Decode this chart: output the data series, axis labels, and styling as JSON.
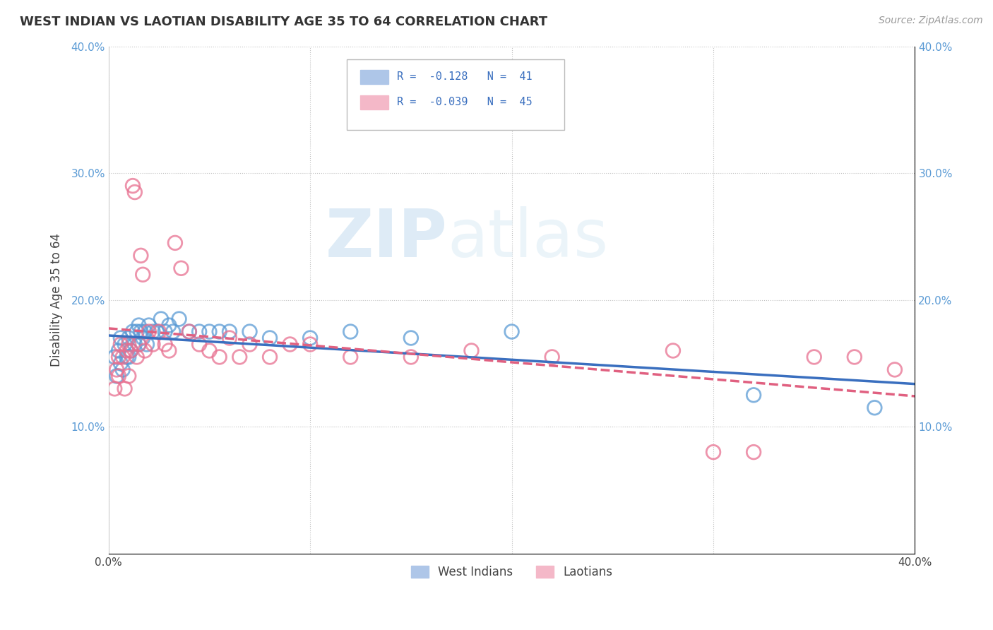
{
  "title": "WEST INDIAN VS LAOTIAN DISABILITY AGE 35 TO 64 CORRELATION CHART",
  "source_text": "Source: ZipAtlas.com",
  "ylabel": "Disability Age 35 to 64",
  "xlim": [
    0.0,
    0.4
  ],
  "ylim": [
    0.0,
    0.4
  ],
  "xtick_vals": [
    0.0,
    0.1,
    0.2,
    0.3,
    0.4
  ],
  "xtick_labels": [
    "0.0%",
    "",
    "",
    "",
    "40.0%"
  ],
  "ytick_vals": [
    0.1,
    0.2,
    0.3,
    0.4
  ],
  "ytick_labels": [
    "10.0%",
    "20.0%",
    "30.0%",
    "40.0%"
  ],
  "right_ytick_vals": [
    0.1,
    0.2,
    0.3,
    0.4
  ],
  "right_ytick_labels": [
    "10.0%",
    "20.0%",
    "30.0%",
    "40.0%"
  ],
  "west_indian_color": "#7bafd4",
  "west_indian_edge": "#5b9bd5",
  "laotian_color": "#f4a0b0",
  "laotian_edge": "#e87090",
  "west_indian_line_color": "#3a6fbf",
  "laotian_line_color": "#e06080",
  "watermark_color": "#d0e8f5",
  "legend_label_1": "R =  -0.128   N =  41",
  "legend_label_2": "R =  -0.039   N =  45",
  "legend_rect1_color": "#aec6e8",
  "legend_rect2_color": "#f4b8c8",
  "bottom_legend_1": "West Indians",
  "bottom_legend_2": "Laotians",
  "wi_x": [
    0.003,
    0.004,
    0.005,
    0.006,
    0.006,
    0.007,
    0.008,
    0.009,
    0.01,
    0.01,
    0.011,
    0.012,
    0.013,
    0.014,
    0.015,
    0.015,
    0.016,
    0.017,
    0.018,
    0.019,
    0.02,
    0.022,
    0.024,
    0.026,
    0.028,
    0.03,
    0.032,
    0.035,
    0.04,
    0.045,
    0.05,
    0.055,
    0.06,
    0.07,
    0.08,
    0.1,
    0.12,
    0.15,
    0.2,
    0.32,
    0.38
  ],
  "wi_y": [
    0.155,
    0.14,
    0.16,
    0.17,
    0.15,
    0.145,
    0.165,
    0.155,
    0.17,
    0.155,
    0.16,
    0.175,
    0.165,
    0.175,
    0.18,
    0.165,
    0.175,
    0.17,
    0.175,
    0.165,
    0.18,
    0.175,
    0.175,
    0.185,
    0.175,
    0.18,
    0.175,
    0.185,
    0.175,
    0.175,
    0.175,
    0.175,
    0.175,
    0.175,
    0.17,
    0.17,
    0.175,
    0.17,
    0.175,
    0.125,
    0.115
  ],
  "la_x": [
    0.003,
    0.004,
    0.005,
    0.005,
    0.006,
    0.007,
    0.008,
    0.009,
    0.01,
    0.01,
    0.011,
    0.012,
    0.013,
    0.014,
    0.015,
    0.016,
    0.017,
    0.018,
    0.02,
    0.022,
    0.025,
    0.028,
    0.03,
    0.033,
    0.036,
    0.04,
    0.045,
    0.05,
    0.055,
    0.06,
    0.065,
    0.07,
    0.08,
    0.09,
    0.1,
    0.12,
    0.15,
    0.18,
    0.22,
    0.28,
    0.3,
    0.32,
    0.35,
    0.37,
    0.39
  ],
  "la_y": [
    0.13,
    0.145,
    0.155,
    0.14,
    0.165,
    0.155,
    0.13,
    0.16,
    0.165,
    0.14,
    0.16,
    0.29,
    0.285,
    0.155,
    0.165,
    0.235,
    0.22,
    0.16,
    0.175,
    0.165,
    0.175,
    0.165,
    0.16,
    0.245,
    0.225,
    0.175,
    0.165,
    0.16,
    0.155,
    0.17,
    0.155,
    0.165,
    0.155,
    0.165,
    0.165,
    0.155,
    0.155,
    0.16,
    0.155,
    0.16,
    0.08,
    0.08,
    0.155,
    0.155,
    0.145
  ]
}
